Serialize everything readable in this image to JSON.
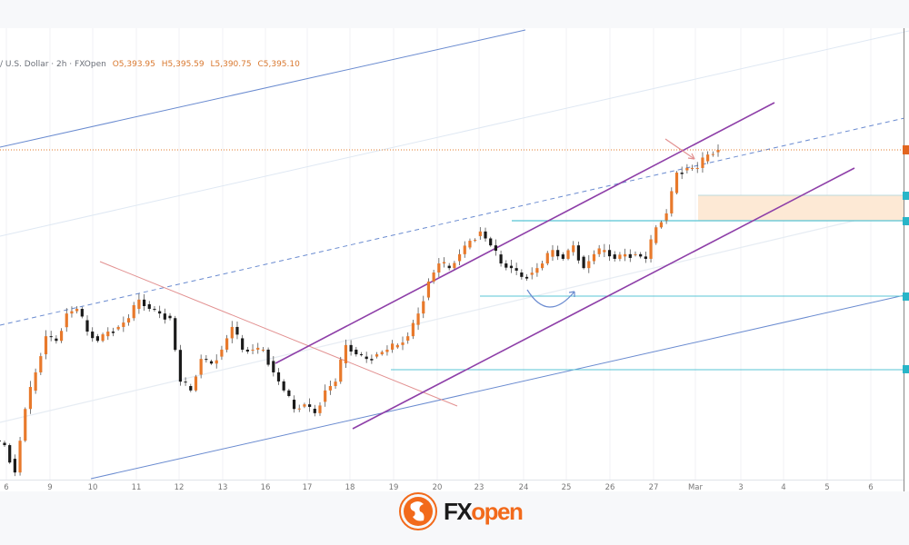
{
  "header": {
    "symbol": "/ U.S. Dollar · 2h · FXOpen",
    "open": "O5,393.95",
    "high": "H5,395.59",
    "low": "L5,390.75",
    "close": "C5,395.10"
  },
  "colors": {
    "up": "#e8792b",
    "down": "#1a1a1a",
    "channel": "#8e3fa8",
    "trendline_blue": "#6a8bd0",
    "level_cyan": "#58c4d4",
    "resistance_red": "#e29090",
    "zone_fill": "#fde9d5",
    "price_line": "#e07a2a"
  },
  "chart_data": {
    "type": "candlestick",
    "title": "",
    "timeframe": "2h",
    "x_tick_labels": [
      "6",
      "9",
      "10",
      "11",
      "12",
      "13",
      "16",
      "17",
      "18",
      "19",
      "20",
      "23",
      "24",
      "25",
      "26",
      "27",
      "Mar",
      "3",
      "4",
      "5",
      "6"
    ],
    "last_close": 5395.1,
    "closes": [
      4758,
      4699,
      4836,
      4915,
      4993,
      4983,
      5042,
      5052,
      5003,
      4983,
      5003,
      5013,
      5032,
      5072,
      5052,
      5042,
      5032,
      4895,
      4876,
      4944,
      4934,
      4964,
      5013,
      4964,
      4964,
      4964,
      4915,
      4876,
      4836,
      4846,
      4827,
      4876,
      4895,
      4974,
      4954,
      4944,
      4954,
      4964,
      4974,
      4993,
      5042,
      5111,
      5150,
      5140,
      5170,
      5199,
      5219,
      5189,
      5150,
      5140,
      5121,
      5130,
      5150,
      5179,
      5160,
      5189,
      5140,
      5170,
      5179,
      5160,
      5170,
      5170,
      5160,
      5228,
      5258,
      5346,
      5356,
      5356,
      5385,
      5395.1
    ],
    "grid": true
  },
  "logo": {
    "text_fx": "FX",
    "text_open": "open"
  }
}
